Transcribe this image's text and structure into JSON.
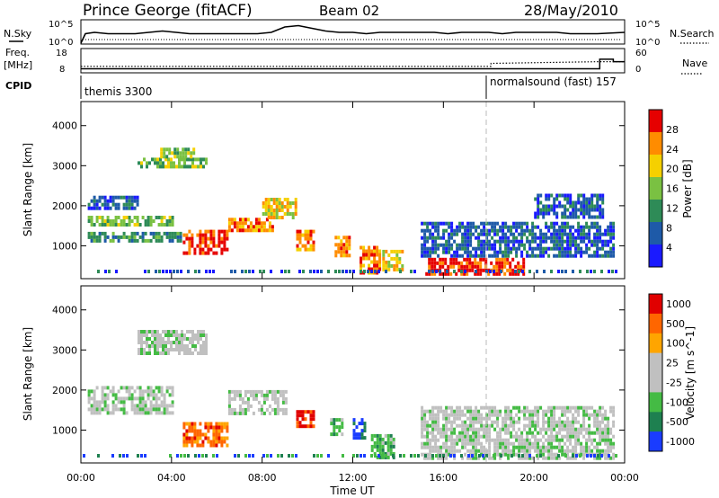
{
  "header": {
    "title": "Prince George (fitACF)",
    "beam": "Beam 02",
    "date": "28/May/2010"
  },
  "noise_panel": {
    "left_label": "N.Sky",
    "right_label": "N.Search",
    "left_ticks": [
      "10^5",
      "10^0"
    ],
    "right_ticks": [
      "10^5",
      "10^0"
    ]
  },
  "freq_panel": {
    "left_label_1": "Freq.",
    "left_label_2": "[MHz]",
    "right_label": "Nave",
    "left_ticks": [
      "18",
      "8"
    ],
    "right_ticks": [
      "60",
      "0"
    ]
  },
  "cpid": {
    "label": "CPID",
    "mode1": "themis 3300",
    "mode2": "normalsound (fast) 157"
  },
  "x_axis": {
    "label": "Time UT",
    "ticks": [
      "00:00",
      "04:00",
      "08:00",
      "12:00",
      "16:00",
      "20:00",
      "00:00"
    ]
  },
  "y_axis": {
    "label": "Slant Range [km]",
    "ticks": [
      "1000",
      "2000",
      "3000",
      "4000"
    ]
  },
  "power_scale": {
    "label": "Power [dB]",
    "ticks": [
      "4",
      "8",
      "12",
      "16",
      "20",
      "24",
      "28"
    ],
    "colors": [
      "#1a1aff",
      "#1e5aa8",
      "#2e8b57",
      "#7ac142",
      "#f5d000",
      "#ff8c00",
      "#e60000"
    ]
  },
  "velocity_scale": {
    "label": "Velocity [m s^-1]",
    "ticks": [
      "1000",
      "500",
      "100",
      "25",
      "-25",
      "-100",
      "-500",
      "-1000"
    ],
    "colors": [
      "#1a3cff",
      "#1e8050",
      "#44bb44",
      "#c0c0c0",
      "#c0c0c0",
      "#ffa500",
      "#ff6600",
      "#e00000"
    ]
  },
  "chart_data": [
    {
      "type": "line",
      "series": [
        {
          "values": [
            0,
            7,
            8,
            7,
            7,
            7,
            8,
            9,
            8,
            7,
            7,
            7,
            7,
            7,
            7,
            8,
            12,
            13,
            11,
            9,
            8,
            8,
            7,
            8,
            8,
            8,
            8,
            8,
            7,
            8,
            8,
            8,
            7,
            8,
            8,
            8,
            8,
            7,
            7,
            7,
            8
          ]
        }
      ],
      "x": [
        0,
        0.2,
        0.6,
        1.2,
        1.8,
        2.4,
        3,
        3.6,
        4.2,
        4.8,
        5.4,
        6,
        6.6,
        7.2,
        7.8,
        8.4,
        9,
        9.6,
        10.2,
        10.8,
        11.4,
        12,
        12.6,
        13.2,
        13.8,
        14.4,
        15,
        15.6,
        16.2,
        16.8,
        17.4,
        18,
        18.6,
        19.2,
        19.8,
        20.4,
        21,
        21.6,
        22.2,
        22.8,
        24
      ]
    },
    {
      "type": "line",
      "series": [
        {
          "values": [
            10.8,
            10.8,
            10.8,
            10.8,
            10.8,
            10.8,
            10.8,
            10.8,
            10.8,
            10.8,
            10.8,
            10.8,
            10.8,
            10.8,
            10.8,
            10.8,
            10.8,
            10.8,
            10.8,
            10.8,
            10.8,
            10.8,
            10.8,
            12.3,
            12.4,
            12.6,
            12.8,
            13.0,
            13.2,
            13.2
          ]
        },
        {
          "values": [
            9.6,
            9.6,
            9.6,
            9.6,
            9.6,
            9.6,
            9.6,
            9.6,
            9.6,
            9.6,
            9.6,
            9.6,
            9.6,
            9.6,
            9.6,
            9.6,
            9.6,
            9.6,
            9.6,
            9.6,
            9.6,
            9.6,
            9.6,
            9.6,
            9.6,
            9.6,
            9.6,
            14.4,
            14.4,
            13.2
          ]
        }
      ],
      "x": [
        0,
        1,
        2,
        3,
        4,
        5,
        6,
        7,
        8,
        9,
        10,
        11,
        12,
        13,
        14,
        15,
        16,
        17,
        18,
        19,
        20,
        21,
        21.5,
        18.1,
        19,
        20,
        21,
        22.9,
        23.5,
        24
      ]
    },
    {
      "type": "heatmap",
      "ylabel": "Slant Range [km]",
      "xlabel": "Time UT",
      "xlim": [
        0,
        24
      ],
      "ylim": [
        180,
        4600
      ],
      "blobs": [
        {
          "t": [
            0.3,
            2.5
          ],
          "r": [
            1950,
            2250
          ],
          "level": 1
        },
        {
          "t": [
            0.3,
            4.0
          ],
          "r": [
            1500,
            1750
          ],
          "level": 3
        },
        {
          "t": [
            0.3,
            4.5
          ],
          "r": [
            1150,
            1350
          ],
          "level": 2
        },
        {
          "t": [
            2.5,
            5.5
          ],
          "r": [
            2950,
            3200
          ],
          "level": 3
        },
        {
          "t": [
            3.5,
            5.0
          ],
          "r": [
            3250,
            3450
          ],
          "level": 3
        },
        {
          "t": [
            4.5,
            6.5
          ],
          "r": [
            850,
            1400
          ],
          "level": 6
        },
        {
          "t": [
            6.5,
            8.5
          ],
          "r": [
            1400,
            1700
          ],
          "level": 5
        },
        {
          "t": [
            8.0,
            9.5
          ],
          "r": [
            1700,
            2200
          ],
          "level": 4
        },
        {
          "t": [
            9.5,
            10.3
          ],
          "r": [
            900,
            1400
          ],
          "level": 5
        },
        {
          "t": [
            11.2,
            11.8
          ],
          "r": [
            800,
            1250
          ],
          "level": 5
        },
        {
          "t": [
            12.3,
            13.2
          ],
          "r": [
            350,
            1000
          ],
          "level": 5
        },
        {
          "t": [
            13.3,
            14.2
          ],
          "r": [
            400,
            900
          ],
          "level": 4
        },
        {
          "t": [
            15.2,
            19.5
          ],
          "r": [
            300,
            700
          ],
          "level": 6
        },
        {
          "t": [
            15.0,
            23.5
          ],
          "r": [
            750,
            1600
          ],
          "level": 1
        },
        {
          "t": [
            20.0,
            23.0
          ],
          "r": [
            1700,
            2300
          ],
          "level": 1
        }
      ]
    },
    {
      "type": "heatmap",
      "ylabel": "Slant Range [km]",
      "xlabel": "Time UT",
      "xlim": [
        0,
        24
      ],
      "ylim": [
        180,
        4600
      ],
      "blobs": [
        {
          "t": [
            0.3,
            4.0
          ],
          "r": [
            1400,
            2100
          ],
          "level": 3
        },
        {
          "t": [
            2.5,
            5.5
          ],
          "r": [
            2900,
            3500
          ],
          "level": 3
        },
        {
          "t": [
            4.5,
            6.5
          ],
          "r": [
            600,
            1200
          ],
          "level": 6
        },
        {
          "t": [
            6.5,
            9.0
          ],
          "r": [
            1400,
            2000
          ],
          "level": 3
        },
        {
          "t": [
            9.5,
            10.3
          ],
          "r": [
            1100,
            1500
          ],
          "level": 7
        },
        {
          "t": [
            11.0,
            11.5
          ],
          "r": [
            900,
            1300
          ],
          "level": 2
        },
        {
          "t": [
            12.0,
            12.5
          ],
          "r": [
            800,
            1300
          ],
          "level": 0
        },
        {
          "t": [
            12.8,
            13.8
          ],
          "r": [
            300,
            900
          ],
          "level": 2
        },
        {
          "t": [
            15.0,
            23.5
          ],
          "r": [
            300,
            1600
          ],
          "level": 3
        }
      ]
    }
  ]
}
